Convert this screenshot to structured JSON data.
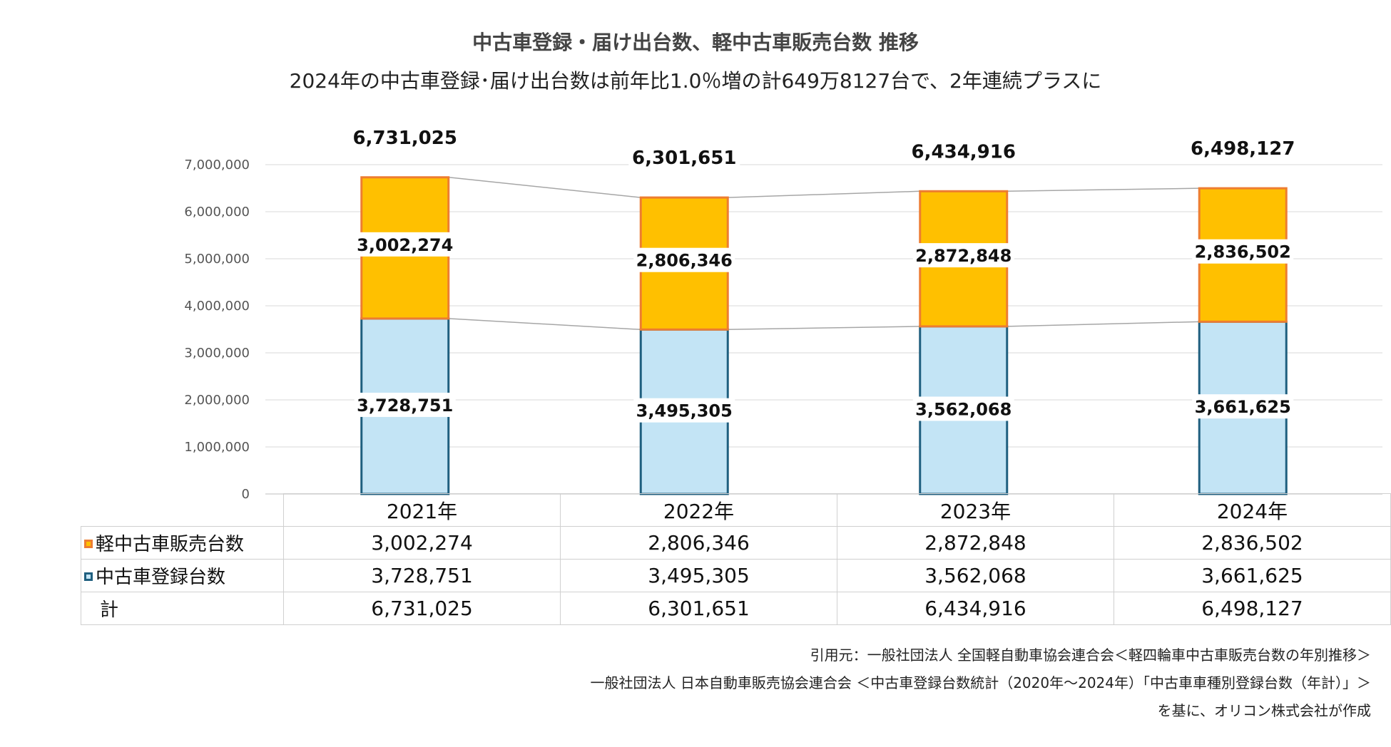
{
  "title": "中古車登録・届け出台数、軽中古車販売台数 推移",
  "subtitle": "2024年の中古車登録･届け出台数は前年比1.0％増の計649万8127台で、2年連続プラスに",
  "chart_data": {
    "type": "bar",
    "stacked": true,
    "categories": [
      "2021年",
      "2022年",
      "2023年",
      "2024年"
    ],
    "series": [
      {
        "name": "中古車登録台数",
        "values": [
          3728751,
          3495305,
          3562068,
          3661625
        ],
        "labels": [
          "3,728,751",
          "3,495,305",
          "3,562,068",
          "3,661,625"
        ],
        "fill": "#C3E4F5",
        "stroke": "#1F5F7F"
      },
      {
        "name": "軽中古車販売台数",
        "values": [
          3002274,
          2806346,
          2872848,
          2836502
        ],
        "labels": [
          "3,002,274",
          "2,806,346",
          "2,872,848",
          "2,836,502"
        ],
        "fill": "#FFC000",
        "stroke": "#ED7D31"
      }
    ],
    "totals": [
      6731025,
      6301651,
      6434916,
      6498127
    ],
    "total_labels": [
      "6,731,025",
      "6,301,651",
      "6,434,916",
      "6,498,127"
    ],
    "ylim": [
      0,
      7000000
    ],
    "yticks": [
      0,
      1000000,
      2000000,
      3000000,
      4000000,
      5000000,
      6000000,
      7000000
    ],
    "ytick_labels": [
      "0",
      "1,000,000",
      "2,000,000",
      "3,000,000",
      "4,000,000",
      "5,000,000",
      "6,000,000",
      "7,000,000"
    ],
    "grid": true,
    "series_lines": true,
    "legend": "data-table"
  },
  "table": {
    "header": [
      "2021年",
      "2022年",
      "2023年",
      "2024年"
    ],
    "rows": [
      {
        "label": "軽中古車販売台数",
        "swatch": "#ED7D31",
        "values": [
          "3,002,274",
          "2,806,346",
          "2,872,848",
          "2,836,502"
        ]
      },
      {
        "label": "中古車登録台数",
        "swatch": "#1F5F7F",
        "values": [
          "3,728,751",
          "3,495,305",
          "3,562,068",
          "3,661,625"
        ]
      },
      {
        "label": "計",
        "values": [
          "6,731,025",
          "6,301,651",
          "6,434,916",
          "6,498,127"
        ]
      }
    ]
  },
  "sources": [
    "引用元：一般社団法人 全国軽自動車協会連合会＜軽四輪車中古車販売台数の年別推移＞",
    "一般社団法人 日本自動車販売協会連合会 ＜中古車登録台数統計（2020年～2024年）「中古車車種別登録台数（年計）」＞",
    "を基に、オリコン株式会社が作成"
  ]
}
